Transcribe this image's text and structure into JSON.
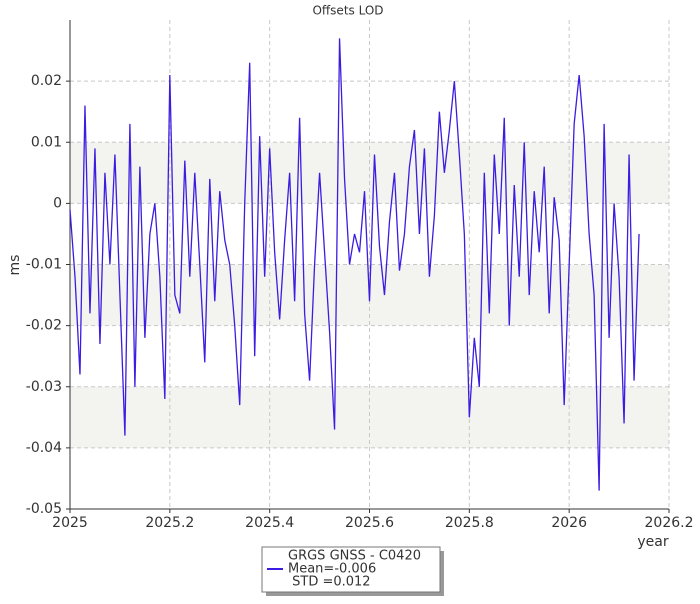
{
  "chart_data": {
    "type": "line",
    "title": "Offsets LOD",
    "x_label": "year",
    "y_label": "ms",
    "x": [
      2025.0,
      2025.01,
      2025.02,
      2025.03,
      2025.04,
      2025.05,
      2025.06,
      2025.07,
      2025.08,
      2025.09,
      2025.1,
      2025.11,
      2025.12,
      2025.13,
      2025.14,
      2025.15,
      2025.16,
      2025.17,
      2025.18,
      2025.19,
      2025.2,
      2025.21,
      2025.22,
      2025.23,
      2025.24,
      2025.25,
      2025.26,
      2025.27,
      2025.28,
      2025.29,
      2025.3,
      2025.31,
      2025.32,
      2025.33,
      2025.34,
      2025.35,
      2025.36,
      2025.37,
      2025.38,
      2025.39,
      2025.4,
      2025.41,
      2025.42,
      2025.43,
      2025.44,
      2025.45,
      2025.46,
      2025.47,
      2025.48,
      2025.49,
      2025.5,
      2025.51,
      2025.52,
      2025.53,
      2025.54,
      2025.55,
      2025.56,
      2025.57,
      2025.58,
      2025.59,
      2025.6,
      2025.61,
      2025.62,
      2025.63,
      2025.64,
      2025.65,
      2025.66,
      2025.67,
      2025.68,
      2025.69,
      2025.7,
      2025.71,
      2025.72,
      2025.73,
      2025.74,
      2025.75,
      2025.76,
      2025.77,
      2025.78,
      2025.79,
      2025.8,
      2025.81,
      2025.82,
      2025.83,
      2025.84,
      2025.85,
      2025.86,
      2025.87,
      2025.88,
      2025.89,
      2025.9,
      2025.91,
      2025.92,
      2025.93,
      2025.94,
      2025.95,
      2025.96,
      2025.97,
      2025.98,
      2025.99,
      2026.0,
      2026.01,
      2026.02,
      2026.03,
      2026.04,
      2026.05,
      2026.06,
      2026.07,
      2026.08,
      2026.09,
      2026.1,
      2026.11,
      2026.12,
      2026.13,
      2026.14
    ],
    "series": [
      {
        "name": "GRGS GNSS - C0420",
        "color": "#3a1de0",
        "values": [
          -0.001,
          -0.012,
          -0.028,
          0.016,
          -0.018,
          0.009,
          -0.023,
          0.005,
          -0.01,
          0.008,
          -0.015,
          -0.038,
          0.013,
          -0.03,
          0.006,
          -0.022,
          -0.005,
          0.0,
          -0.012,
          -0.032,
          0.021,
          -0.015,
          -0.018,
          0.007,
          -0.012,
          0.005,
          -0.01,
          -0.026,
          0.004,
          -0.016,
          0.002,
          -0.006,
          -0.01,
          -0.02,
          -0.033,
          0.0,
          0.023,
          -0.025,
          0.011,
          -0.012,
          0.009,
          -0.008,
          -0.019,
          -0.006,
          0.005,
          -0.016,
          0.014,
          -0.018,
          -0.029,
          -0.01,
          0.005,
          -0.008,
          -0.021,
          -0.037,
          0.027,
          0.004,
          -0.01,
          -0.005,
          -0.008,
          0.002,
          -0.016,
          0.008,
          -0.007,
          -0.015,
          -0.003,
          0.005,
          -0.011,
          -0.005,
          0.006,
          0.012,
          -0.005,
          0.009,
          -0.012,
          -0.002,
          0.015,
          0.005,
          0.012,
          0.02,
          0.008,
          -0.005,
          -0.035,
          -0.022,
          -0.03,
          0.005,
          -0.018,
          0.008,
          -0.005,
          0.014,
          -0.02,
          0.003,
          -0.012,
          0.01,
          -0.015,
          0.002,
          -0.008,
          0.006,
          -0.018,
          0.001,
          -0.006,
          -0.033,
          -0.01,
          0.013,
          0.021,
          0.011,
          -0.005,
          -0.015,
          -0.047,
          0.013,
          -0.022,
          0.0,
          -0.012,
          -0.036,
          0.008,
          -0.029,
          -0.005
        ]
      }
    ],
    "annotations": [
      "Mean=-0.006",
      " STD =0.012"
    ],
    "xlim": [
      2025,
      2026.2
    ],
    "xticks": [
      2025,
      2025.2,
      2025.4,
      2025.6,
      2025.8,
      2026,
      2026.2
    ],
    "ylim": [
      -0.05,
      0.03
    ],
    "yticks": [
      -0.05,
      -0.04,
      -0.03,
      -0.02,
      -0.01,
      0,
      0.01,
      0.02
    ],
    "grid": true,
    "legend": "bottom"
  }
}
